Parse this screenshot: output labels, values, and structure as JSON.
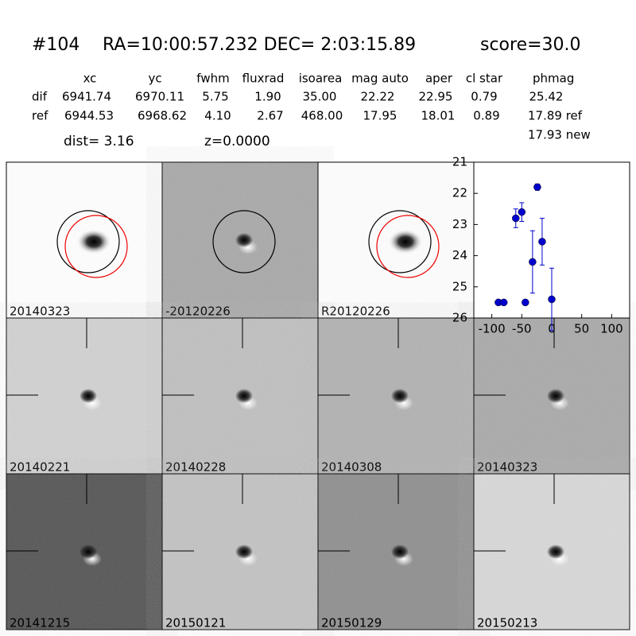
{
  "header": {
    "id": "#104",
    "coords": "RA=10:00:57.232 DEC= 2:03:15.89",
    "score": "score=30.0"
  },
  "table": {
    "columns": [
      "xc",
      "yc",
      "fwhm",
      "fluxrad",
      "isoarea",
      "mag auto",
      "aper",
      "cl star",
      "phmag"
    ],
    "rows": [
      [
        "dif",
        "6941.74",
        "6970.11",
        "5.75",
        "1.90",
        "35.00",
        "22.22",
        "22.95",
        "0.79",
        "25.42"
      ],
      [
        "ref",
        "6944.53",
        "6968.62",
        "4.10",
        "2.67",
        "468.00",
        "17.95",
        "18.01",
        "0.89",
        "17.89 ref"
      ]
    ],
    "extra": "17.93 new"
  },
  "info": {
    "dist": "dist=  3.16",
    "z": "z=0.0000"
  },
  "panels": [
    "20140323",
    "-20120226",
    "R20120226",
    "20140221",
    "20140228",
    "20140308",
    "20140323",
    "20141215",
    "20150121",
    "20150129",
    "20150213"
  ],
  "chart_data": {
    "type": "scatter",
    "xlim": [
      -130,
      130
    ],
    "ylim": [
      26,
      21
    ],
    "xticks": [
      -100,
      -50,
      0,
      50,
      100
    ],
    "yticks": [
      21,
      22,
      23,
      24,
      25,
      26
    ],
    "series": [
      {
        "color": "#0000cc",
        "x": [
          -89,
          -80,
          -44,
          -60,
          -50,
          -32,
          -16,
          -24,
          0
        ],
        "values": [
          25.5,
          25.5,
          25.5,
          22.8,
          22.6,
          24.2,
          23.55,
          21.8,
          25.4
        ],
        "errors": [
          0.05,
          0.05,
          0.05,
          0.3,
          0.3,
          1.0,
          0.75,
          0.1,
          1.0
        ]
      }
    ]
  }
}
